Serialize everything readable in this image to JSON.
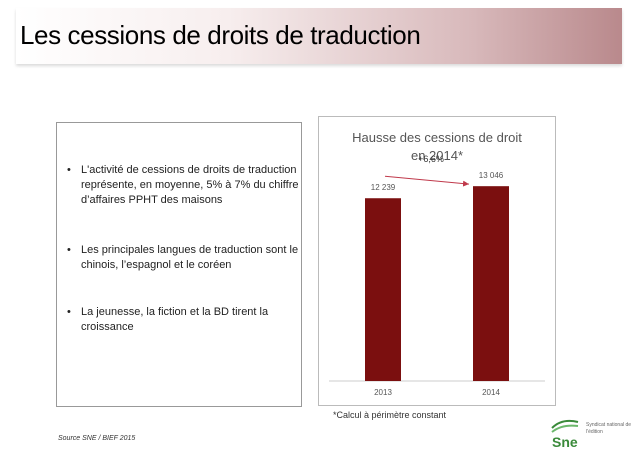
{
  "title": "Les cessions de droits de traduction",
  "bullets": [
    "L'activité de cessions de droits de traduction représente, en moyenne, 5% à 7% du chiffre d’affaires PPHT des maisons",
    "Les principales langues de traduction sont le chinois, l’espagnol et le coréen",
    "La jeunesse, la fiction et la BD tirent la croissance"
  ],
  "footnote": "*Calcul à périmètre constant",
  "source": "Source SNE / BIEF 2015",
  "logo": {
    "text": "Syndicat national de l'édition",
    "color": "#3a8a3a"
  },
  "chart_data": {
    "type": "bar",
    "title_line1": "Hausse des cessions de droit",
    "title_line2": "en 2014*",
    "categories": [
      "2013",
      "2014"
    ],
    "values": [
      12239,
      13046
    ],
    "value_labels": [
      "12 239",
      "13 046"
    ],
    "annotation": "+6,6%",
    "ylim": [
      0,
      15000
    ],
    "bar_color": "#7b0f0f",
    "arrow_color": "#c0394b"
  }
}
